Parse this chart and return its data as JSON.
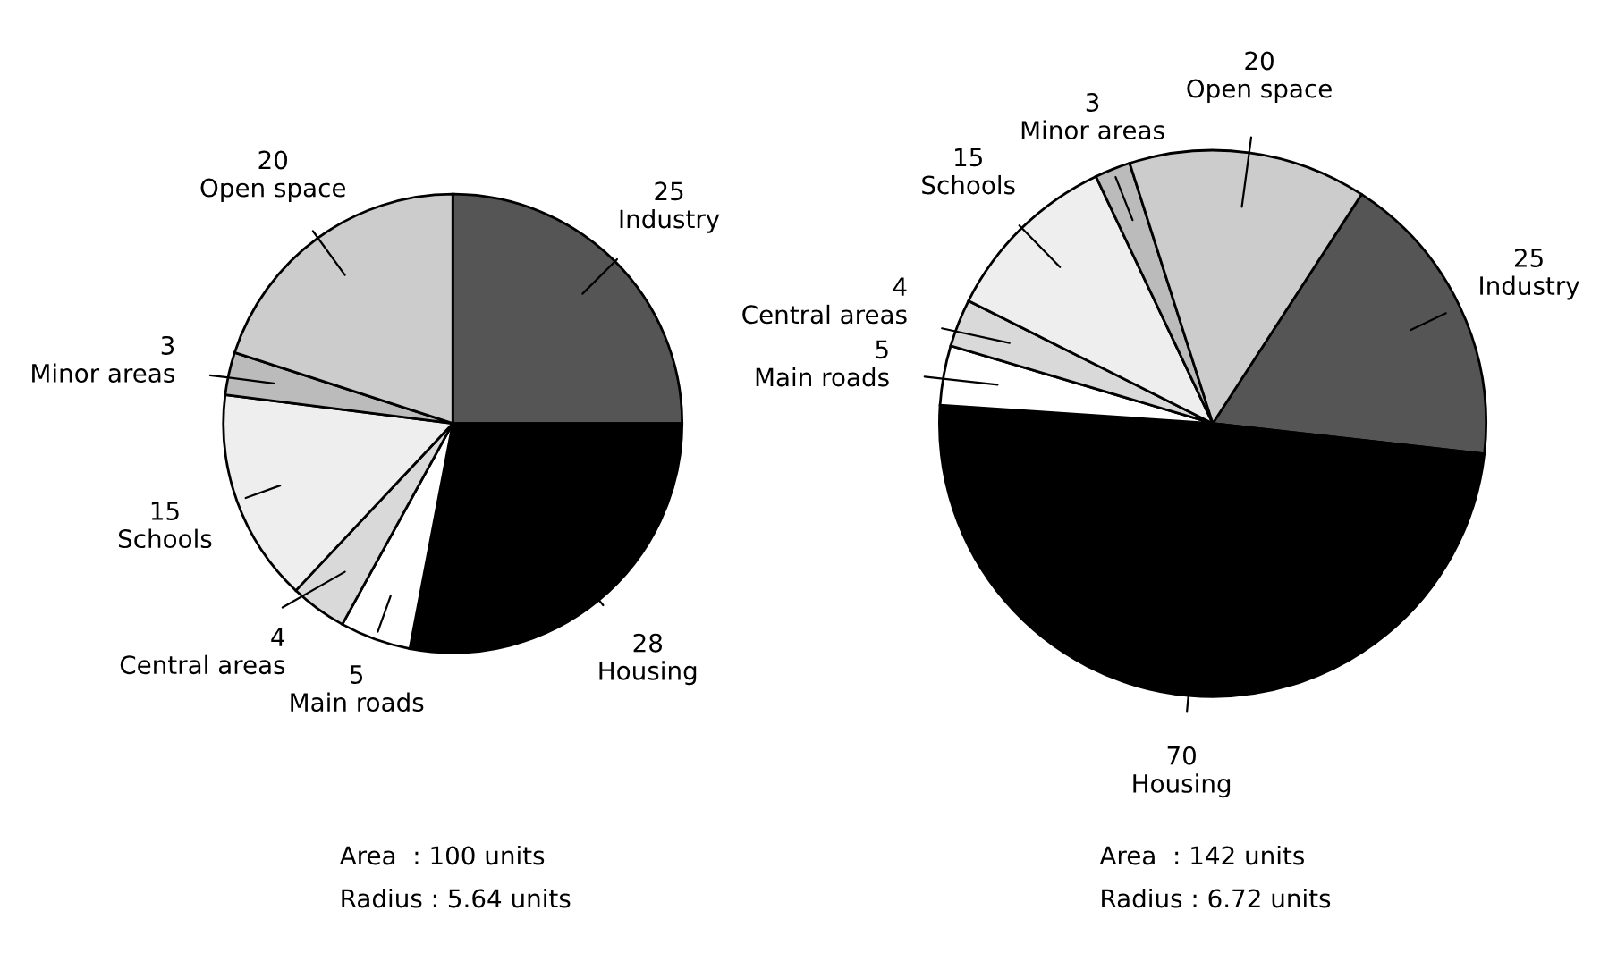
{
  "chart_data": [
    {
      "type": "pie",
      "categories": [
        "Industry",
        "Housing",
        "Main roads",
        "Central areas",
        "Schools",
        "Minor areas",
        "Open space"
      ],
      "values": [
        25,
        28,
        5,
        4,
        15,
        3,
        20
      ],
      "colors": [
        "#555555",
        "#000000",
        "#ffffff",
        "#d9d9d9",
        "#eeeeee",
        "#bbbbbb",
        "#cccccc"
      ],
      "data_labels": true,
      "annotations": [
        "Area  : 100 units",
        "Radius : 5.64 units"
      ]
    },
    {
      "type": "pie",
      "categories": [
        "Industry",
        "Housing",
        "Main roads",
        "Central areas",
        "Schools",
        "Minor areas",
        "Open space"
      ],
      "values": [
        25,
        70,
        5,
        4,
        15,
        3,
        20
      ],
      "colors": [
        "#555555",
        "#000000",
        "#ffffff",
        "#d9d9d9",
        "#eeeeee",
        "#bbbbbb",
        "#cccccc"
      ],
      "data_labels": true,
      "annotations": [
        "Area  : 142 units",
        "Radius : 6.72 units"
      ]
    }
  ]
}
